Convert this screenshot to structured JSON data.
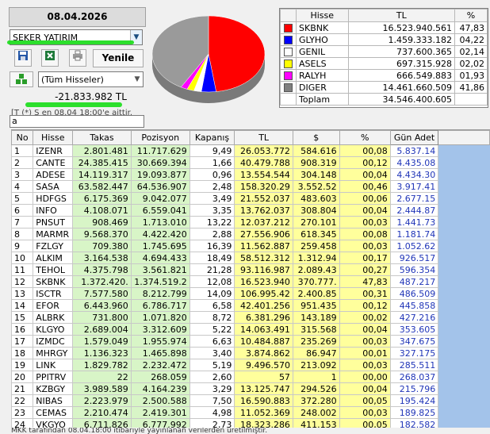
{
  "date": "08.04.2026",
  "company_select": "ŞEKER YATIRIM",
  "toolbar": {
    "save_icon": "floppy-disk",
    "excel_icon": "excel",
    "print_icon": "printer",
    "refresh_label": "Yenile"
  },
  "stock_filter": {
    "icon": "stocks-cubes",
    "value": "(Tüm Hisseler)"
  },
  "total_tl": "-21.833.982 TL",
  "info_note": "en 08.04 18:00'e aittir.",
  "info_note_prefix": "[T (*) S",
  "search_value": "a",
  "legend": {
    "headers": [
      "Hisse",
      "TL",
      "%"
    ],
    "rows": [
      {
        "color": "#ff0000",
        "name": "SKBNK",
        "tl": "16.523.940.561",
        "pct": "47,83"
      },
      {
        "color": "#0000ff",
        "name": "GLYHO",
        "tl": "1.459.333.182",
        "pct": "04,22"
      },
      {
        "color": "#ffffff",
        "name": "GENIL",
        "tl": "737.600.365",
        "pct": "02,14"
      },
      {
        "color": "#ffff00",
        "name": "ASELS",
        "tl": "697.315.928",
        "pct": "02,02"
      },
      {
        "color": "#ff00ff",
        "name": "RALYH",
        "tl": "666.549.883",
        "pct": "01,93"
      },
      {
        "color": "#808080",
        "name": "DIGER",
        "tl": "14.461.660.509",
        "pct": "41,86"
      }
    ],
    "total_label": "Toplam",
    "total_tl": "34.546.400.605"
  },
  "chart_data": {
    "type": "pie",
    "categories": [
      "SKBNK",
      "GLYHO",
      "GENIL",
      "ASELS",
      "RALYH",
      "DIGER"
    ],
    "values": [
      47.83,
      4.22,
      2.14,
      2.02,
      1.93,
      41.86
    ],
    "colors": [
      "#ff0000",
      "#0000ff",
      "#ffffff",
      "#ffff00",
      "#ff00ff",
      "#9a9a9a"
    ]
  },
  "grid": {
    "headers": [
      "No",
      "Hisse",
      "Takas",
      "Pozisyon",
      "Kapanış",
      "TL",
      "$",
      "%",
      "Gün Adet"
    ],
    "rows": [
      [
        "1",
        "IZENR",
        "2.801.481",
        "11.717.629",
        "9,49",
        "26.053.772",
        "584.616",
        "00,08",
        "5.837.14"
      ],
      [
        "2",
        "CANTE",
        "24.385.415",
        "30.669.394",
        "1,66",
        "40.479.788",
        "908.319",
        "00,12",
        "4.435.08"
      ],
      [
        "3",
        "ADESE",
        "14.119.317",
        "19.093.877",
        "0,96",
        "13.554.544",
        "304.148",
        "00,04",
        "4.434.30"
      ],
      [
        "4",
        "SASA",
        "63.582.447",
        "64.536.907",
        "2,48",
        "158.320.29",
        "3.552.52",
        "00,46",
        "3.917.41"
      ],
      [
        "5",
        "HDFGS",
        "6.175.369",
        "9.042.077",
        "3,49",
        "21.552.037",
        "483.603",
        "00,06",
        "2.677.15"
      ],
      [
        "6",
        "INFO",
        "4.108.071",
        "6.559.041",
        "3,35",
        "13.762.037",
        "308.804",
        "00,04",
        "2.444.87"
      ],
      [
        "7",
        "PNSUT",
        "908.469",
        "1.713.010",
        "13,22",
        "12.037.212",
        "270.101",
        "00,03",
        "1.441.73"
      ],
      [
        "8",
        "MARMR",
        "9.568.370",
        "4.422.420",
        "2,88",
        "27.556.906",
        "618.345",
        "00,08",
        "1.181.74"
      ],
      [
        "9",
        "FZLGY",
        "709.380",
        "1.745.695",
        "16,39",
        "11.562.887",
        "259.458",
        "00,03",
        "1.052.62"
      ],
      [
        "10",
        "ALKIM",
        "3.164.538",
        "4.694.433",
        "18,49",
        "58.512.312",
        "1.312.94",
        "00,17",
        "926.517"
      ],
      [
        "11",
        "TEHOL",
        "4.375.798",
        "3.561.821",
        "21,28",
        "93.116.987",
        "2.089.43",
        "00,27",
        "596.354"
      ],
      [
        "12",
        "SKBNK",
        "1.372.420.",
        "1.374.519.2",
        "12,08",
        "16.523.940",
        "370.777.",
        "47,83",
        "487.217"
      ],
      [
        "13",
        "ISCTR",
        "7.577.580",
        "8.212.799",
        "14,09",
        "106.995.42",
        "2.400.85",
        "00,31",
        "486.509"
      ],
      [
        "14",
        "EFOR",
        "6.443.960",
        "6.786.717",
        "6,58",
        "42.401.256",
        "951.435",
        "00,12",
        "445.858"
      ],
      [
        "15",
        "ALBRK",
        "731.800",
        "1.071.820",
        "8,72",
        "6.381.296",
        "143.189",
        "00,02",
        "427.216"
      ],
      [
        "16",
        "KLGYO",
        "2.689.004",
        "3.312.609",
        "5,22",
        "14.063.491",
        "315.568",
        "00,04",
        "353.605"
      ],
      [
        "17",
        "IZMDC",
        "1.579.049",
        "1.955.974",
        "6,63",
        "10.484.887",
        "235.269",
        "00,03",
        "347.675"
      ],
      [
        "18",
        "MHRGY",
        "1.136.323",
        "1.465.898",
        "3,40",
        "3.874.862",
        "86.947",
        "00,01",
        "327.175"
      ],
      [
        "19",
        "LINK",
        "1.829.782",
        "2.232.472",
        "5,19",
        "9.496.570",
        "213.092",
        "00,03",
        "285.511"
      ],
      [
        "20",
        "PPITRV",
        "22",
        "268.059",
        "2,60",
        "57",
        "1",
        "00,00",
        "268.037"
      ],
      [
        "21",
        "KZBGY",
        "3.989.589",
        "4.164.239",
        "3,29",
        "13.125.747",
        "294.526",
        "00,04",
        "215.796"
      ],
      [
        "22",
        "NIBAS",
        "2.223.979",
        "2.500.588",
        "7,50",
        "16.590.883",
        "372.280",
        "00,05",
        "195.424"
      ],
      [
        "23",
        "CEMAS",
        "2.210.474",
        "2.419.301",
        "4,98",
        "11.052.369",
        "248.002",
        "00,03",
        "189.825"
      ],
      [
        "24",
        "VKGYO",
        "6.711.826",
        "6.777.992",
        "2,73",
        "18.323.286",
        "411.153",
        "00,05",
        "182.582"
      ]
    ]
  },
  "footer_note": "MKK tarafından 08.04.18:00 itibariyle yayınlanan verilerden üretilmiştir."
}
